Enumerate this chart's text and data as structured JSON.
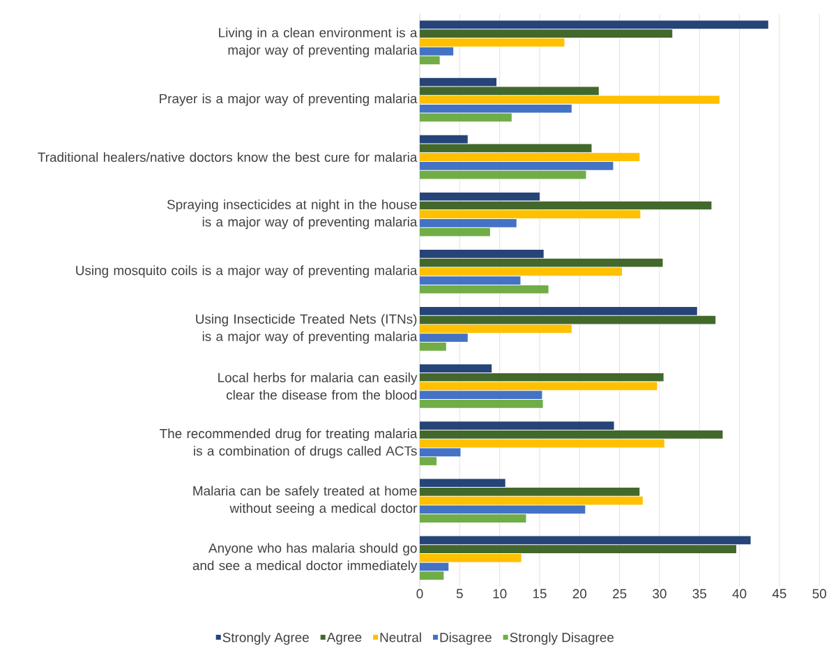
{
  "chart_data": {
    "type": "bar",
    "orientation": "horizontal",
    "categories": [
      "Living in a clean environment is a major way of preventing malaria",
      "Prayer is a major way of preventing malaria",
      "Traditional healers/native doctors know the best cure for malaria",
      "Spraying insecticides at night in the house is a major way of preventing malaria",
      "Using mosquito coils is a major way of preventing malaria",
      "Using Insecticide Treated Nets (ITNs) is a major way of preventing malaria",
      "Local herbs for malaria can easily clear the disease from the blood",
      "The recommended drug for treating malaria is a combination of drugs called ACTs",
      "Malaria can be safely treated at home without seeing a medical doctor",
      "Anyone who has malaria should go and see a medical doctor immediately"
    ],
    "series": [
      {
        "name": "Strongly Agree",
        "color": "#264478",
        "values": [
          43.6,
          9.6,
          6.0,
          15.0,
          15.5,
          34.7,
          9.0,
          24.3,
          10.7,
          41.4
        ]
      },
      {
        "name": "Agree",
        "color": "#43682b",
        "values": [
          31.6,
          22.4,
          21.5,
          36.5,
          30.4,
          37.0,
          30.5,
          37.9,
          27.5,
          39.6
        ]
      },
      {
        "name": "Neutral",
        "color": "#ffc000",
        "values": [
          18.1,
          37.5,
          27.5,
          27.6,
          25.3,
          19.0,
          29.7,
          30.6,
          27.9,
          12.7
        ]
      },
      {
        "name": "Disagree",
        "color": "#4472c4",
        "values": [
          4.2,
          19.0,
          24.2,
          12.1,
          12.6,
          6.0,
          15.3,
          5.1,
          20.7,
          3.6
        ]
      },
      {
        "name": "Strongly Disagree",
        "color": "#70ad47",
        "values": [
          2.5,
          11.5,
          20.8,
          8.8,
          16.1,
          3.3,
          15.4,
          2.1,
          13.3,
          3.0
        ]
      }
    ],
    "xlim": [
      0,
      50
    ],
    "xticks": [
      0,
      5,
      10,
      15,
      20,
      25,
      30,
      35,
      40,
      45,
      50
    ],
    "grid": "x",
    "legend": "bottom"
  }
}
